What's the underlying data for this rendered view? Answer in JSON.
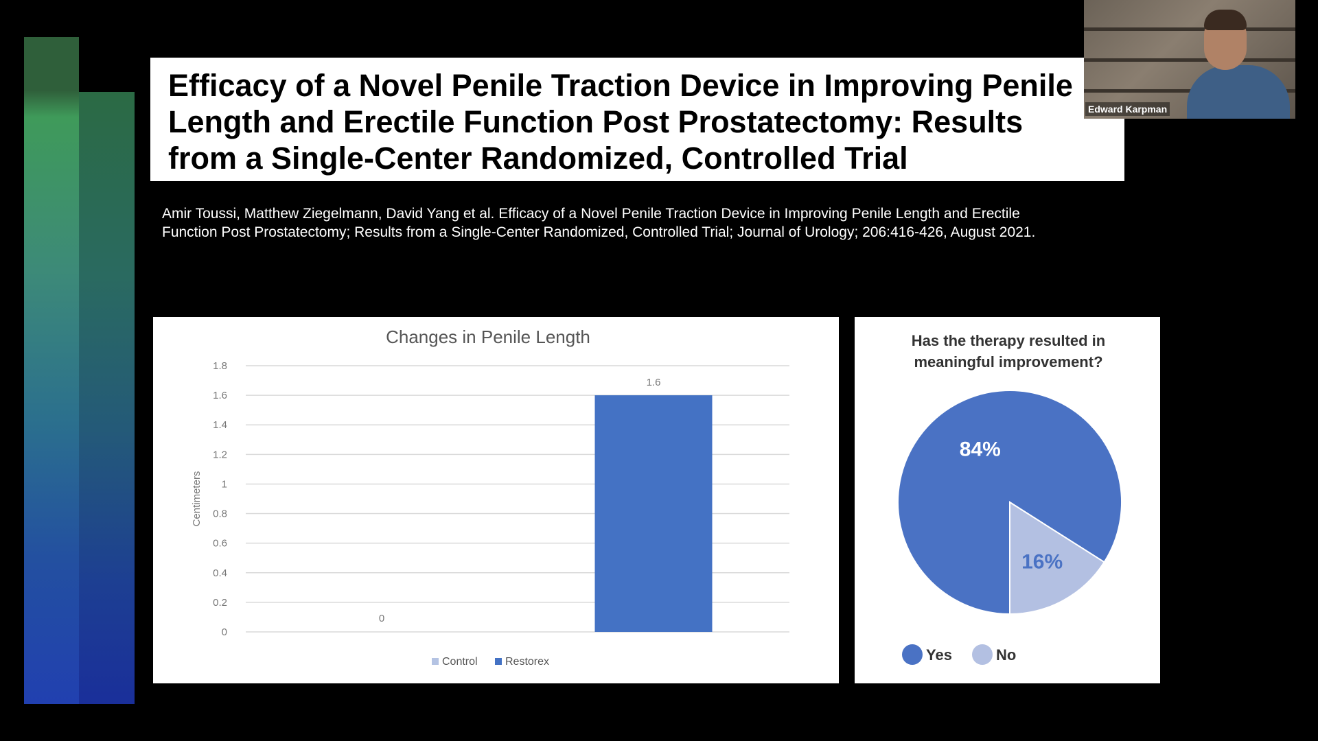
{
  "slide": {
    "title_lines": [
      "Efficacy of a Novel Penile Traction Device in Improving Penile",
      "Length and Erectile Function Post Prostatectomy: Results",
      "from a Single-Center Randomized, Controlled Trial"
    ],
    "citation_lines": [
      "Amir Toussi, Matthew Ziegelmann, David Yang et al. Efficacy of a Novel Penile Traction Device in Improving Penile Length and Erectile",
      "Function Post Prostatectomy; Results from a Single-Center Randomized, Controlled Trial; Journal of Urology; 206:416-426, August 2021."
    ]
  },
  "participant": {
    "name": "Edward Karpman"
  },
  "chart_data": [
    {
      "type": "bar",
      "title": "Changes in Penile Length",
      "ylabel": "Centimeters",
      "xlabel": "",
      "categories": [
        "Control",
        "Restorex"
      ],
      "values": [
        0,
        1.6
      ],
      "data_labels": [
        "0",
        "1.6"
      ],
      "ylim": [
        0,
        1.8
      ],
      "yticks": [
        "0",
        "0.2",
        "0.4",
        "0.6",
        "0.8",
        "1",
        "1.2",
        "1.4",
        "1.6",
        "1.8"
      ],
      "grid": true,
      "legend_position": "bottom",
      "legend": [
        "Control",
        "Restorex"
      ],
      "colors": [
        "#b4c3e3",
        "#4472c4"
      ]
    },
    {
      "type": "pie",
      "title_lines": [
        "Has the therapy resulted in",
        "meaningful improvement?"
      ],
      "labels": [
        "Yes",
        "No"
      ],
      "values": [
        84,
        16
      ],
      "data_labels": [
        "84%",
        "16%"
      ],
      "colors": [
        "#4a72c4",
        "#b3c0e2"
      ],
      "legend_position": "bottom"
    }
  ]
}
